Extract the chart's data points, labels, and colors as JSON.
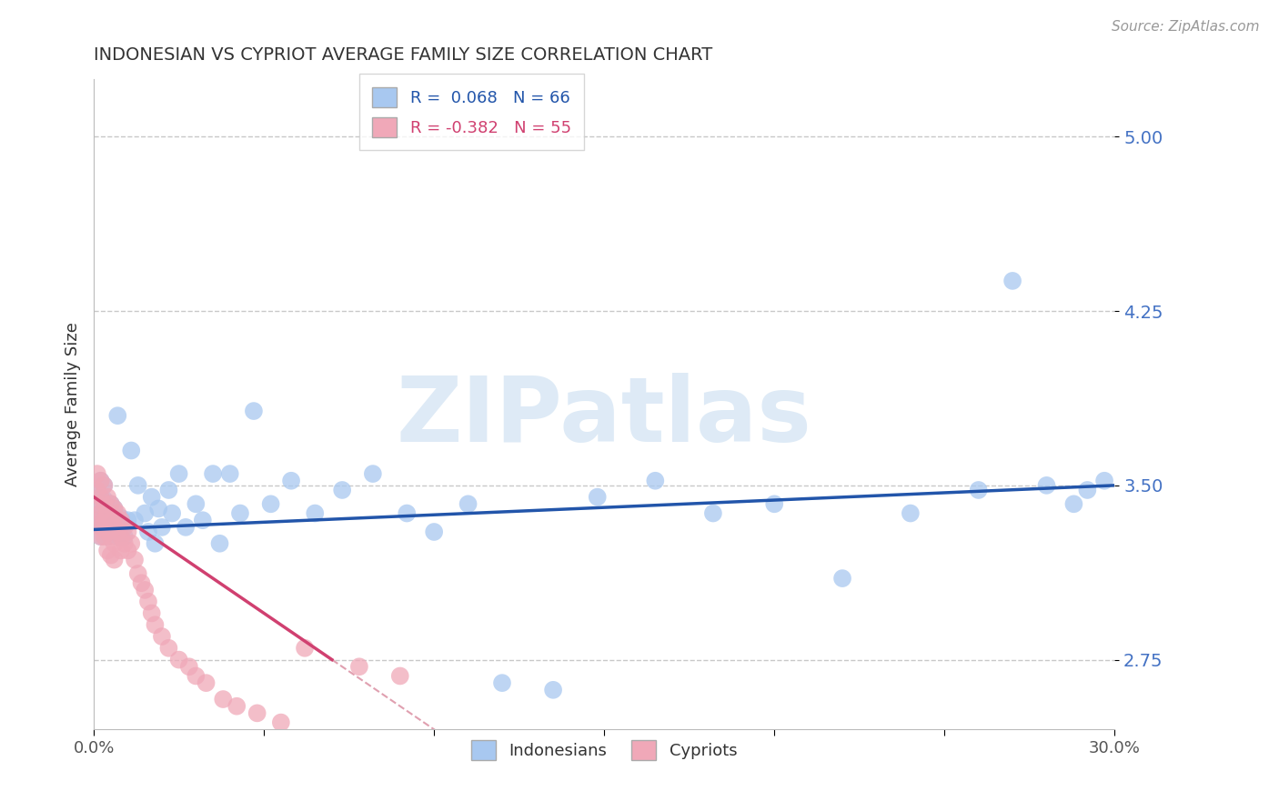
{
  "title": "INDONESIAN VS CYPRIOT AVERAGE FAMILY SIZE CORRELATION CHART",
  "source_text": "Source: ZipAtlas.com",
  "ylabel": "Average Family Size",
  "xlim": [
    0.0,
    0.3
  ],
  "ylim": [
    2.45,
    5.25
  ],
  "yticks": [
    2.75,
    3.5,
    4.25,
    5.0
  ],
  "xticks": [
    0.0,
    0.05,
    0.1,
    0.15,
    0.2,
    0.25,
    0.3
  ],
  "xticklabels": [
    "0.0%",
    "",
    "",
    "",
    "",
    "",
    "30.0%"
  ],
  "background_color": "#ffffff",
  "grid_color": "#c8c8c8",
  "indonesian_color": "#a8c8f0",
  "cypriot_color": "#f0a8b8",
  "indonesian_line_color": "#2255aa",
  "cypriot_line_color": "#d04070",
  "cypriot_dash_color": "#e0a0b0",
  "R_indonesian": 0.068,
  "N_indonesian": 66,
  "R_cypriot": -0.382,
  "N_cypriot": 55,
  "legend_labels": [
    "Indonesians",
    "Cypriots"
  ],
  "watermark": "ZIPatlas",
  "indonesian_x": [
    0.001,
    0.001,
    0.001,
    0.002,
    0.002,
    0.002,
    0.002,
    0.003,
    0.003,
    0.003,
    0.003,
    0.004,
    0.004,
    0.004,
    0.005,
    0.005,
    0.005,
    0.006,
    0.006,
    0.007,
    0.007,
    0.008,
    0.009,
    0.01,
    0.011,
    0.012,
    0.013,
    0.015,
    0.016,
    0.017,
    0.018,
    0.019,
    0.02,
    0.022,
    0.023,
    0.025,
    0.027,
    0.03,
    0.032,
    0.035,
    0.037,
    0.04,
    0.043,
    0.047,
    0.052,
    0.058,
    0.065,
    0.073,
    0.082,
    0.092,
    0.1,
    0.11,
    0.12,
    0.135,
    0.148,
    0.165,
    0.182,
    0.2,
    0.22,
    0.24,
    0.26,
    0.27,
    0.28,
    0.288,
    0.292,
    0.297
  ],
  "indonesian_y": [
    3.35,
    3.42,
    3.48,
    3.28,
    3.38,
    3.45,
    3.52,
    3.32,
    3.38,
    3.44,
    3.5,
    3.28,
    3.35,
    3.42,
    3.3,
    3.36,
    3.42,
    3.32,
    3.4,
    3.28,
    3.8,
    3.36,
    3.28,
    3.35,
    3.65,
    3.35,
    3.5,
    3.38,
    3.3,
    3.45,
    3.25,
    3.4,
    3.32,
    3.48,
    3.38,
    3.55,
    3.32,
    3.42,
    3.35,
    3.55,
    3.25,
    3.55,
    3.38,
    3.82,
    3.42,
    3.52,
    3.38,
    3.48,
    3.55,
    3.38,
    3.3,
    3.42,
    2.65,
    2.62,
    3.45,
    3.52,
    3.38,
    3.42,
    3.1,
    3.38,
    3.48,
    4.38,
    3.5,
    3.42,
    3.48,
    3.52
  ],
  "cypriot_x": [
    0.001,
    0.001,
    0.001,
    0.001,
    0.002,
    0.002,
    0.002,
    0.002,
    0.002,
    0.003,
    0.003,
    0.003,
    0.003,
    0.004,
    0.004,
    0.004,
    0.004,
    0.005,
    0.005,
    0.005,
    0.005,
    0.006,
    0.006,
    0.006,
    0.006,
    0.007,
    0.007,
    0.008,
    0.008,
    0.008,
    0.009,
    0.009,
    0.01,
    0.01,
    0.011,
    0.012,
    0.013,
    0.014,
    0.015,
    0.016,
    0.017,
    0.018,
    0.02,
    0.022,
    0.025,
    0.028,
    0.03,
    0.033,
    0.038,
    0.042,
    0.048,
    0.055,
    0.062,
    0.078,
    0.09
  ],
  "cypriot_y": [
    3.55,
    3.48,
    3.42,
    3.35,
    3.52,
    3.45,
    3.38,
    3.32,
    3.28,
    3.5,
    3.42,
    3.35,
    3.28,
    3.45,
    3.38,
    3.3,
    3.22,
    3.42,
    3.35,
    3.28,
    3.2,
    3.4,
    3.32,
    3.25,
    3.18,
    3.38,
    3.3,
    3.35,
    3.28,
    3.22,
    3.32,
    3.25,
    3.3,
    3.22,
    3.25,
    3.18,
    3.12,
    3.08,
    3.05,
    3.0,
    2.95,
    2.9,
    2.85,
    2.8,
    2.75,
    2.72,
    2.68,
    2.65,
    2.58,
    2.55,
    2.52,
    2.48,
    2.8,
    2.72,
    2.68
  ]
}
